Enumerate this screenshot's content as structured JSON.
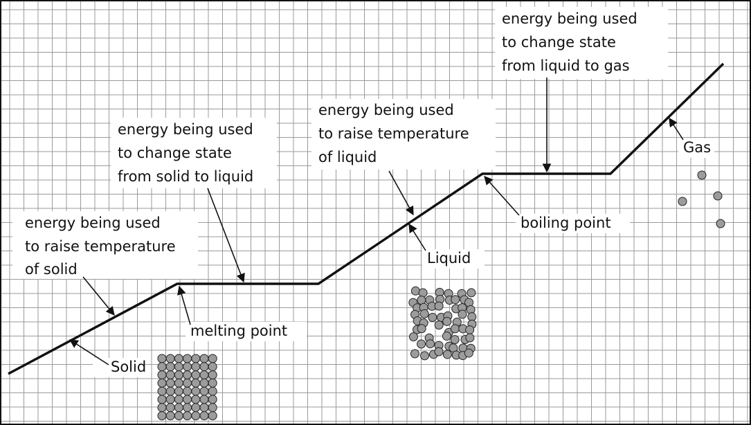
{
  "labels": [
    {
      "lines": [
        "energy being used",
        "to raise temperature",
        "of solid"
      ]
    },
    {
      "lines": [
        "energy being used",
        "to change state",
        "from solid to liquid"
      ]
    },
    {
      "lines": [
        "energy being used",
        "to raise temperature",
        "of liquid"
      ]
    },
    {
      "lines": [
        "energy being used",
        "to change state",
        "from liquid to gas"
      ]
    },
    {
      "lines": [
        "Gas"
      ]
    },
    {
      "lines": [
        "boiling point"
      ]
    },
    {
      "lines": [
        "Liquid"
      ]
    },
    {
      "lines": [
        "melting point"
      ]
    },
    {
      "lines": [
        "Solid"
      ]
    }
  ]
}
